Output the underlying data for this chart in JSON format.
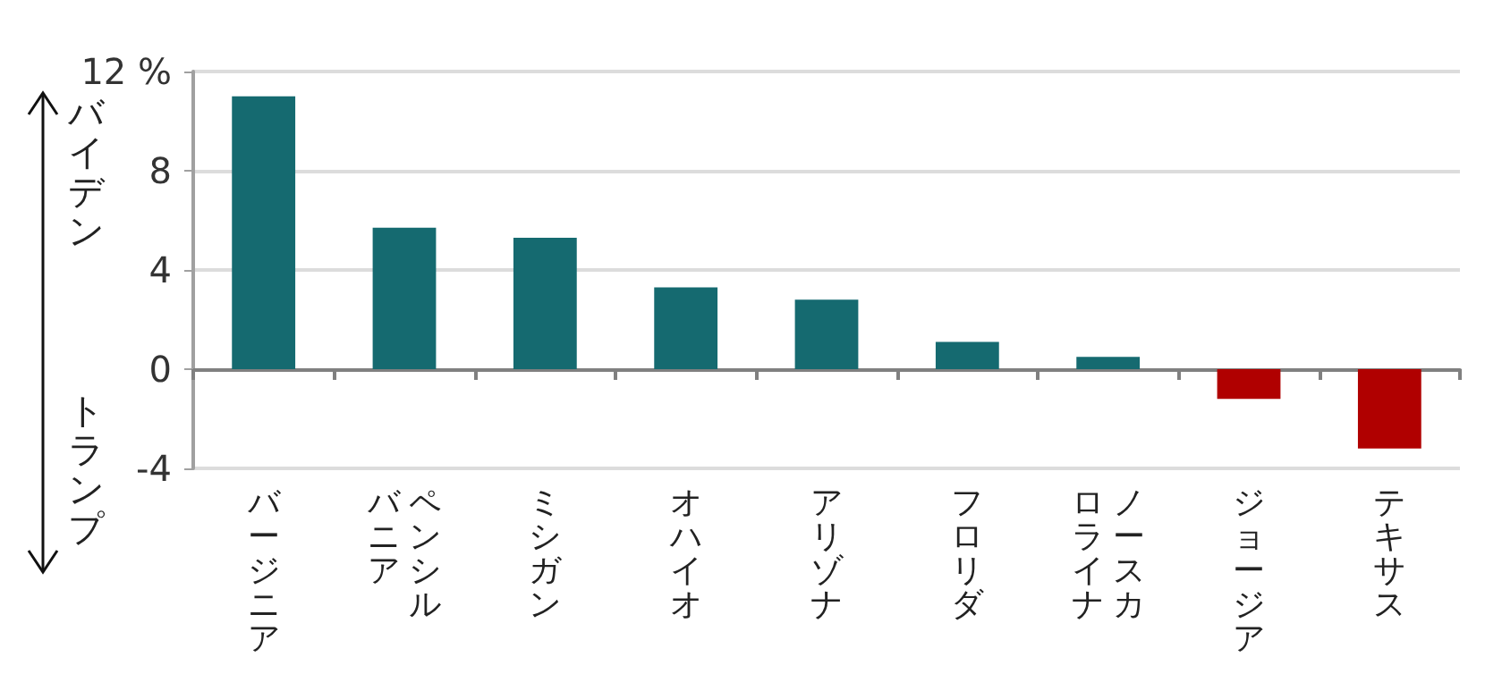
{
  "chart_data": {
    "type": "bar",
    "categories": [
      "バージニア",
      "ペンシルバニア",
      "ミシガン",
      "オハイオ",
      "アリゾナ",
      "フロリダ",
      "ノースカロライナ",
      "ジョージア",
      "テキサス"
    ],
    "values": [
      11.0,
      5.7,
      5.3,
      3.3,
      2.8,
      1.1,
      0.5,
      -1.2,
      -3.2
    ],
    "colors": [
      "#156a70",
      "#156a70",
      "#156a70",
      "#156a70",
      "#156a70",
      "#156a70",
      "#156a70",
      "#b00000",
      "#b00000"
    ],
    "ylim": [
      -4,
      12
    ],
    "yticks": [
      -4,
      0,
      4,
      8,
      {
        "value": 12,
        "label": "12 %"
      }
    ],
    "grid": "y",
    "annotations": [
      "バイデン",
      "トランプ"
    ]
  }
}
